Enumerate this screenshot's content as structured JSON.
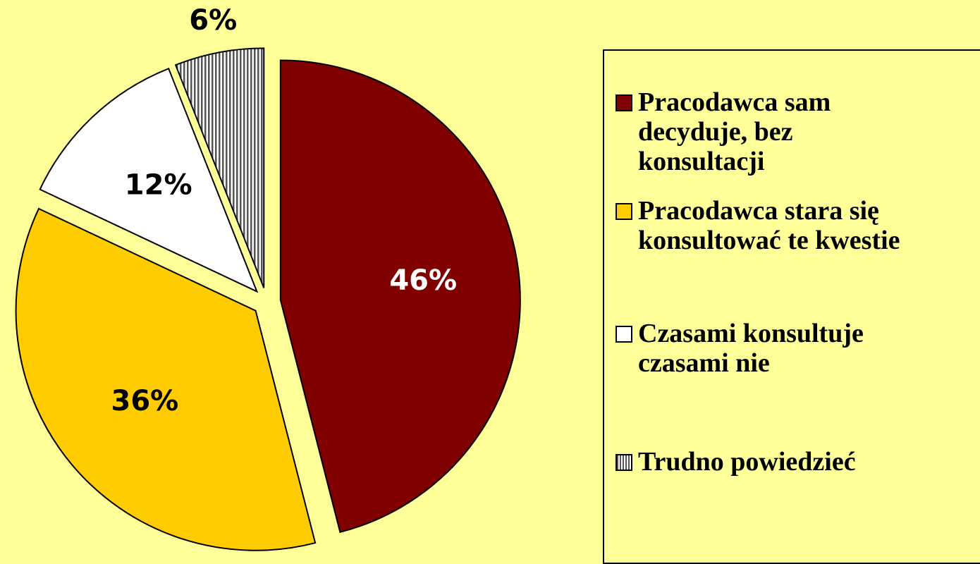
{
  "chart_data": {
    "type": "pie",
    "categories": [
      "Pracodawca sam decyduje, bez konsultacji",
      "Pracodawca stara się konsultować te kwestie",
      "Czasami konsultuje czasami nie",
      "Trudno powiedzieć"
    ],
    "values": [
      46,
      36,
      12,
      6
    ],
    "value_labels": [
      "46%",
      "36%",
      "12%",
      "6%"
    ],
    "colors": [
      "#800000",
      "#ffcc00",
      "#ffffff",
      "hatch"
    ]
  }
}
